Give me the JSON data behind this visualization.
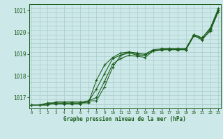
{
  "title": "",
  "xlabel": "Graphe pression niveau de la mer (hPa)",
  "bg_color": "#cce8e8",
  "grid_color": "#aacccc",
  "line_color": "#1a5c1a",
  "ylim": [
    1016.5,
    1021.3
  ],
  "xlim": [
    -0.3,
    23.3
  ],
  "yticks": [
    1017,
    1018,
    1019,
    1020,
    1021
  ],
  "xticks": [
    0,
    1,
    2,
    3,
    4,
    5,
    6,
    7,
    8,
    9,
    10,
    11,
    12,
    13,
    14,
    15,
    16,
    17,
    18,
    19,
    20,
    21,
    22,
    23
  ],
  "series": [
    [
      1016.65,
      1016.65,
      1016.75,
      1016.75,
      1016.75,
      1016.75,
      1016.75,
      1016.75,
      1017.8,
      1018.5,
      1018.85,
      1019.05,
      1019.1,
      1019.0,
      1019.0,
      1019.2,
      1019.25,
      1019.25,
      1019.25,
      1019.25,
      1019.9,
      1019.75,
      1020.15,
      1021.05
    ],
    [
      1016.65,
      1016.65,
      1016.7,
      1016.7,
      1016.7,
      1016.7,
      1016.7,
      1016.85,
      1017.0,
      1017.75,
      1018.55,
      1018.8,
      1018.95,
      1018.9,
      1018.85,
      1019.15,
      1019.2,
      1019.2,
      1019.2,
      1019.2,
      1019.85,
      1019.7,
      1020.05,
      1020.95
    ],
    [
      1016.65,
      1016.65,
      1016.75,
      1016.75,
      1016.75,
      1016.75,
      1016.75,
      1016.8,
      1017.4,
      1018.1,
      1018.8,
      1018.95,
      1019.05,
      1018.95,
      1018.95,
      1019.15,
      1019.2,
      1019.2,
      1019.2,
      1019.2,
      1019.85,
      1019.65,
      1020.1,
      1021.0
    ],
    [
      1016.65,
      1016.65,
      1016.65,
      1016.8,
      1016.8,
      1016.8,
      1016.8,
      1016.85,
      1016.85,
      1017.5,
      1018.4,
      1018.95,
      1019.1,
      1019.05,
      1019.0,
      1019.2,
      1019.25,
      1019.25,
      1019.25,
      1019.25,
      1019.9,
      1019.75,
      1020.2,
      1021.1
    ]
  ]
}
